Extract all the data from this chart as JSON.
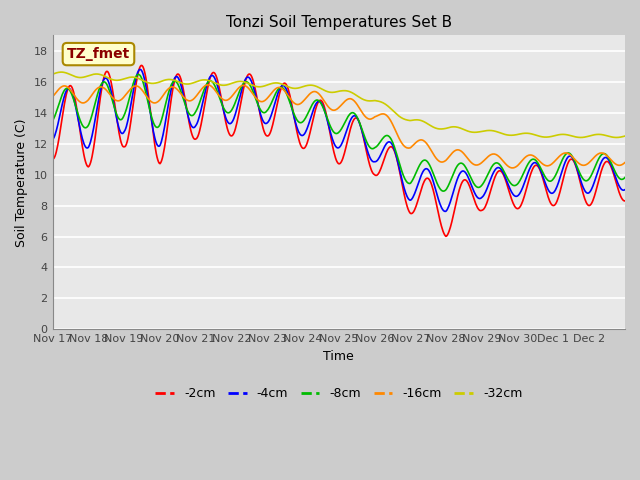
{
  "title": "Tonzi Soil Temperatures Set B",
  "xlabel": "Time",
  "ylabel": "Soil Temperature (C)",
  "ylim": [
    0,
    19
  ],
  "yticks": [
    0,
    2,
    4,
    6,
    8,
    10,
    12,
    14,
    16,
    18
  ],
  "annotation_text": "TZ_fmet",
  "annotation_color": "#8B0000",
  "annotation_bg": "#FFFFCC",
  "colors": {
    "-2cm": "#FF0000",
    "-4cm": "#0000FF",
    "-8cm": "#00BB00",
    "-16cm": "#FF8800",
    "-32cm": "#CCCC00"
  },
  "legend_labels": [
    "-2cm",
    "-4cm",
    "-8cm",
    "-16cm",
    "-32cm"
  ],
  "fig_bg_color": "#CCCCCC",
  "plot_bg_color": "#E8E8E8",
  "grid_color": "#FFFFFF",
  "x_tick_labels": [
    "Nov 17",
    "Nov 18",
    "Nov 19",
    "Nov 20",
    "Nov 21",
    "Nov 22",
    "Nov 23",
    "Nov 24",
    "Nov 25",
    "Nov 26",
    "Nov 27",
    "Nov 28",
    "Nov 29",
    "Nov 30",
    "Dec 1",
    "Dec 2"
  ],
  "x_tick_positions": [
    0,
    1,
    2,
    3,
    4,
    5,
    6,
    7,
    8,
    9,
    10,
    11,
    12,
    13,
    14,
    15
  ],
  "n_days": 16
}
